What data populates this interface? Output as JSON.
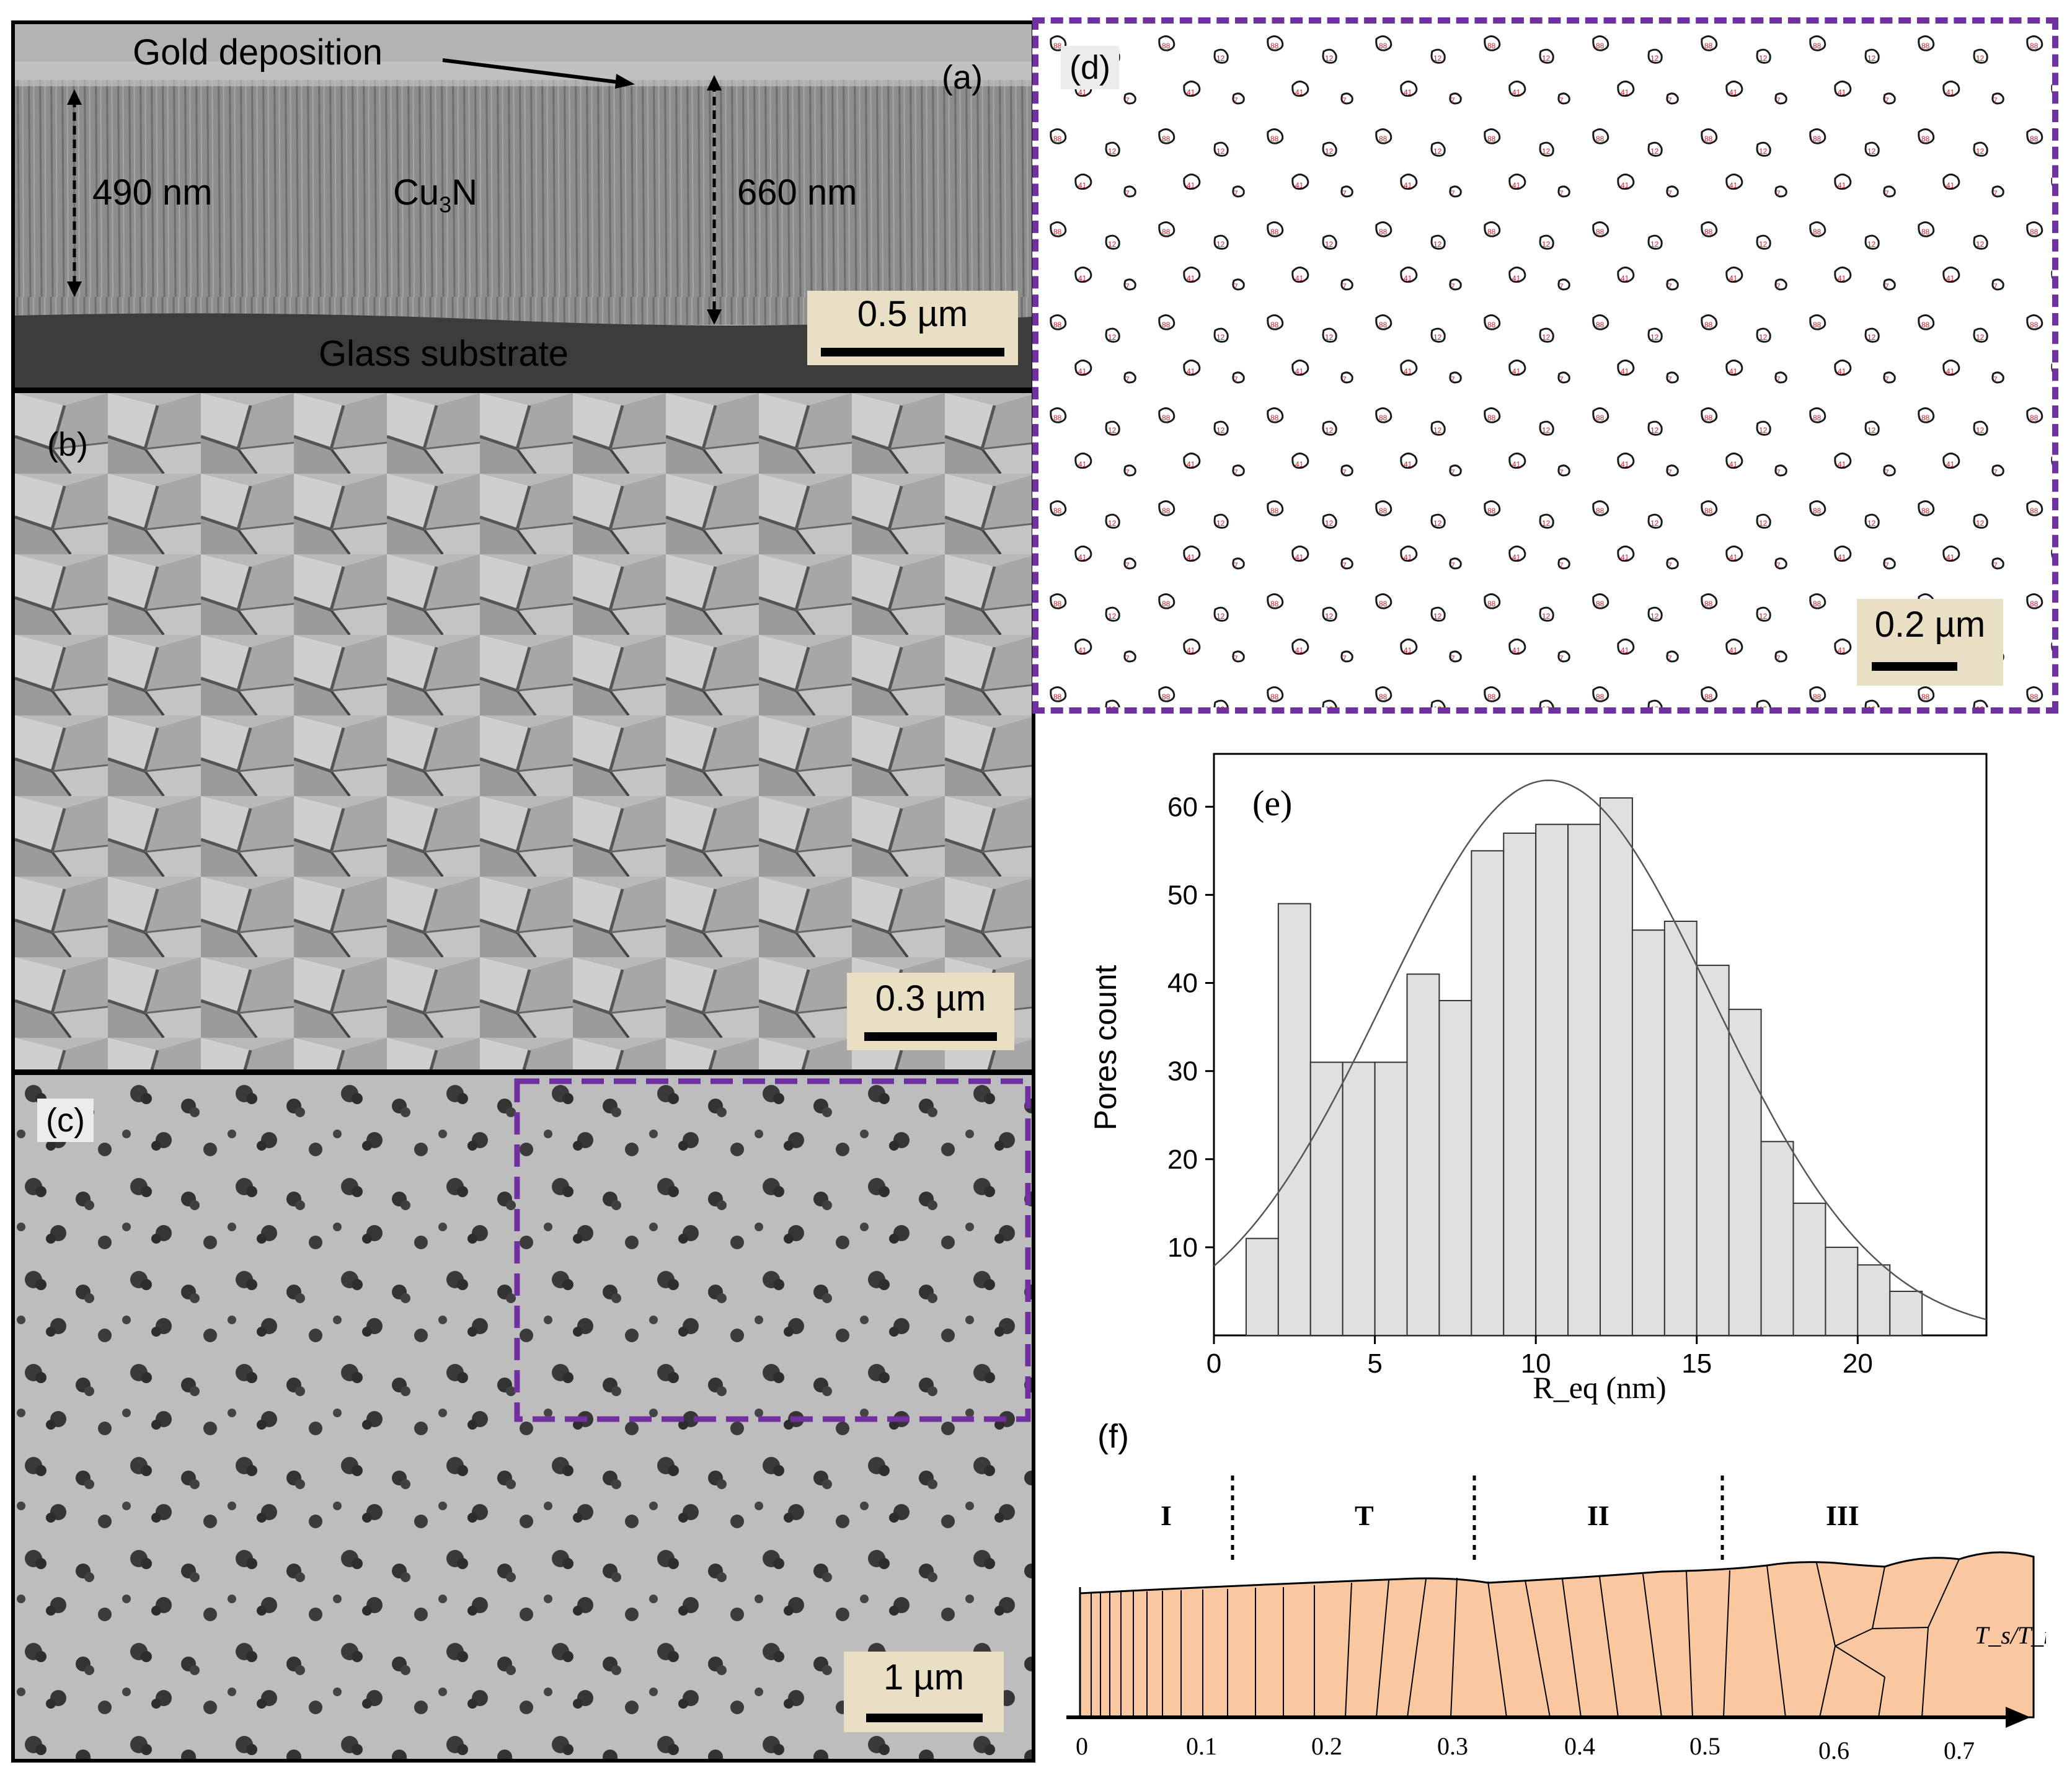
{
  "panel_a": {
    "label": "(a)",
    "annotation_gold": "Gold deposition",
    "thickness_left": "490 nm",
    "thickness_right": "660 nm",
    "film": "Cu",
    "film_sub": "3",
    "film_tail": "N",
    "substrate": "Glass substrate",
    "scale": "0.5 µm"
  },
  "panel_b": {
    "label": "(b)",
    "scale": "0.3 µm"
  },
  "panel_c": {
    "label": "(c)",
    "scale": "1 µm"
  },
  "panel_d": {
    "label": "(d)",
    "scale": "0.2 µm"
  },
  "panel_e": {
    "label": "(e)"
  },
  "panel_f": {
    "label": "(f)",
    "zones": [
      "I",
      "T",
      "II",
      "III"
    ],
    "axis_label": "T_s/T_m",
    "ticks": [
      "0",
      "0.1",
      "0.2",
      "0.3",
      "0.4",
      "0.5",
      "0.6",
      "0.7"
    ]
  },
  "colors": {
    "frame": "#000000",
    "dashed_box": "#7030a0",
    "histogram_fill": "#e0e0e0",
    "zone_fill": "#f9c8a0",
    "scalebar_bg": "#e9dfc4",
    "pore_outline_red": "#d0202a"
  },
  "chart_data": {
    "type": "bar",
    "bin_width": 1,
    "bin_starts": [
      1,
      2,
      3,
      4,
      5,
      6,
      7,
      8,
      9,
      10,
      11,
      12,
      13,
      14,
      15,
      16,
      17,
      18,
      19,
      20,
      21
    ],
    "values": [
      11,
      49,
      31,
      31,
      31,
      41,
      38,
      55,
      57,
      58,
      58,
      61,
      46,
      47,
      42,
      37,
      22,
      15,
      10,
      8,
      5
    ],
    "fit": {
      "type": "gaussian",
      "peak": 63,
      "mean": 10.4,
      "sigma": 5.1
    },
    "xlabel": "R_eq (nm)",
    "ylabel": "Pores count",
    "xlim": [
      0,
      24
    ],
    "ylim": [
      0,
      66
    ],
    "xticks": [
      0,
      5,
      10,
      15,
      20
    ],
    "yticks": [
      10,
      20,
      30,
      40,
      50,
      60
    ],
    "grid": false
  }
}
